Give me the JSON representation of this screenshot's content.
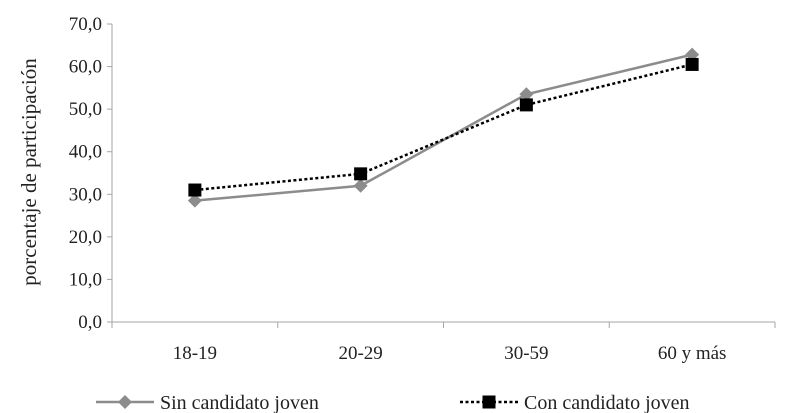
{
  "chart_data": {
    "type": "line",
    "ylabel": "porcentaje de participación",
    "xlabel": "",
    "categories": [
      "18-19",
      "20-29",
      "30-59",
      "60 y más"
    ],
    "ylim": [
      0,
      70
    ],
    "y_ticks": [
      "0,0",
      "10,0",
      "20,0",
      "30,0",
      "40,0",
      "50,0",
      "60,0",
      "70,0"
    ],
    "grid": false,
    "legend_position": "bottom",
    "series": [
      {
        "name": "Sin candidato joven",
        "values": [
          28.5,
          32.0,
          53.5,
          62.8
        ],
        "color": "#8c8c8c",
        "line_style": "solid",
        "marker": "diamond"
      },
      {
        "name": "Con candidato joven",
        "values": [
          31.0,
          34.8,
          51.0,
          60.5
        ],
        "color": "#000000",
        "line_style": "dotted",
        "marker": "square"
      }
    ]
  }
}
